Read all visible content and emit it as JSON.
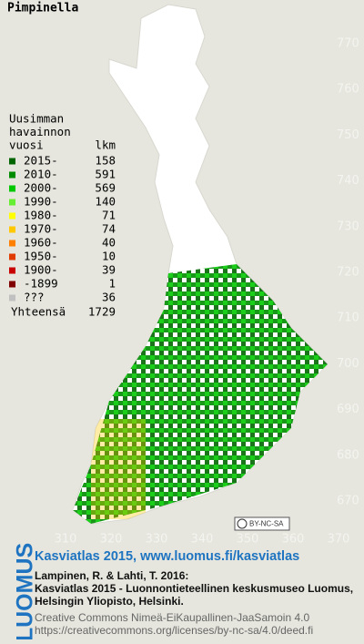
{
  "title": "Pimpinella",
  "legend": {
    "heading": [
      "Uusimman",
      "havainnon"
    ],
    "year_header": "vuosi",
    "count_header": "lkm",
    "rows": [
      {
        "period": "2015-",
        "count": 158,
        "color": "#006400"
      },
      {
        "period": "2010-",
        "count": 591,
        "color": "#008c00"
      },
      {
        "period": "2000-",
        "count": 569,
        "color": "#00c800"
      },
      {
        "period": "1990-",
        "count": 140,
        "color": "#66ee33"
      },
      {
        "period": "1980-",
        "count": 71,
        "color": "#ffff00"
      },
      {
        "period": "1970-",
        "count": 74,
        "color": "#ffc800"
      },
      {
        "period": "1960-",
        "count": 40,
        "color": "#ff7f00"
      },
      {
        "period": "1950-",
        "count": 10,
        "color": "#e03c00"
      },
      {
        "period": "1900-",
        "count": 39,
        "color": "#c80000"
      },
      {
        "period": "-1899",
        "count": 1,
        "color": "#800000"
      },
      {
        "period": "???",
        "count": 36,
        "color": "#c0c0c0"
      }
    ],
    "total_label": "Yhteensä",
    "total": 1729
  },
  "map": {
    "y_axis_labels": [
      "770",
      "760",
      "750",
      "740",
      "730",
      "720",
      "710",
      "700",
      "690",
      "680",
      "670"
    ],
    "x_axis_labels": [
      "310",
      "320",
      "330",
      "340",
      "350",
      "360",
      "370"
    ],
    "license_badge": "BY-NC-SA"
  },
  "footer": {
    "brand": "LUOMUS",
    "headline": "Kasviatlas 2015, www.luomus.fi/kasviatlas",
    "citation": [
      "Lampinen, R. & Lahti, T. 2016:",
      "Kasviatlas 2015 - Luonnontieteellinen keskusmuseo Luomus,",
      "Helsingin Yliopisto, Helsinki."
    ],
    "license": [
      "Creative Commons Nimeä-EiKaupallinen-JaaSamoin 4.0",
      "https://creativecommons.org/licenses/by-nc-sa/4.0/deed.fi"
    ]
  }
}
